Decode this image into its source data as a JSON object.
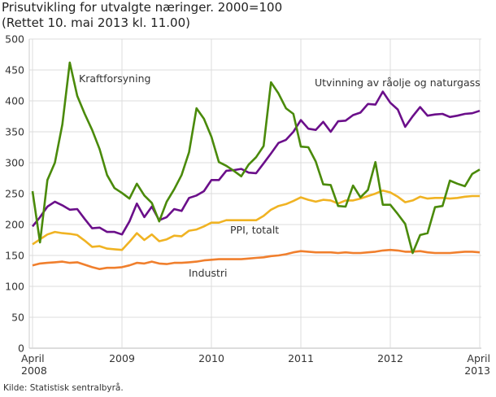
{
  "chart_data": {
    "type": "line",
    "title": "Prisutvikling for utvalgte næringer. 2000=100",
    "subtitle": "(Rettet 10. mai 2013 kl. 11.00)",
    "source": "Kilde: Statistisk sentralbyrå.",
    "xlabel": "",
    "ylabel": "",
    "ylim": [
      0,
      500
    ],
    "yticks": [
      0,
      50,
      100,
      150,
      200,
      250,
      300,
      350,
      400,
      450,
      500
    ],
    "grid": true,
    "legend": "inline labels",
    "xtick_labels": [
      {
        "month": "2008-04",
        "lines": [
          "April",
          "2008"
        ]
      },
      {
        "month": "2009-04",
        "lines": [
          "2009"
        ]
      },
      {
        "month": "2010-04",
        "lines": [
          "2010"
        ]
      },
      {
        "month": "2011-04",
        "lines": [
          "2011"
        ]
      },
      {
        "month": "2012-04",
        "lines": [
          "2012"
        ]
      },
      {
        "month": "2013-04",
        "lines": [
          "April",
          "2013"
        ]
      }
    ],
    "x_start": "2008-04",
    "x_end": "2013-04",
    "x_frequency": "monthly",
    "series": [
      {
        "name": "Kraftforsyning",
        "color": "#4a8a0a",
        "values": [
          254,
          171,
          272,
          300,
          362,
          462,
          408,
          379,
          353,
          322,
          280,
          259,
          251,
          242,
          266,
          247,
          235,
          205,
          237,
          257,
          280,
          317,
          388,
          371,
          342,
          301,
          295,
          287,
          278,
          297,
          309,
          327,
          430,
          412,
          388,
          379,
          326,
          325,
          302,
          265,
          264,
          230,
          229,
          263,
          244,
          256,
          301,
          232,
          232,
          217,
          201,
          154,
          183,
          186,
          228,
          230,
          271,
          266,
          262,
          282,
          289
        ]
      },
      {
        "name": "Utvinning av råolje og naturgass",
        "color": "#6b0f8a",
        "values": [
          197,
          212,
          229,
          237,
          231,
          224,
          225,
          209,
          194,
          195,
          188,
          188,
          184,
          205,
          234,
          212,
          229,
          207,
          212,
          225,
          222,
          243,
          247,
          254,
          272,
          272,
          287,
          288,
          290,
          284,
          283,
          299,
          315,
          332,
          337,
          350,
          369,
          355,
          353,
          366,
          350,
          367,
          368,
          377,
          381,
          395,
          394,
          415,
          397,
          386,
          358,
          375,
          390,
          376,
          378,
          379,
          374,
          376,
          379,
          380,
          384
        ]
      },
      {
        "name": "PPI, totalt",
        "color": "#f0b323",
        "values": [
          168,
          176,
          184,
          188,
          186,
          185,
          183,
          174,
          164,
          165,
          161,
          160,
          159,
          172,
          186,
          175,
          184,
          173,
          176,
          182,
          181,
          190,
          192,
          197,
          203,
          203,
          207,
          207,
          207,
          207,
          207,
          214,
          224,
          230,
          233,
          238,
          244,
          240,
          237,
          240,
          239,
          234,
          239,
          239,
          242,
          246,
          250,
          255,
          252,
          245,
          236,
          239,
          245,
          242,
          243,
          243,
          242,
          243,
          245,
          246,
          246
        ]
      },
      {
        "name": "Industri",
        "color": "#f07f2d",
        "values": [
          134,
          137,
          138,
          139,
          140,
          138,
          139,
          135,
          131,
          128,
          130,
          130,
          131,
          134,
          138,
          137,
          140,
          137,
          136,
          138,
          138,
          139,
          140,
          142,
          143,
          144,
          144,
          144,
          144,
          145,
          146,
          147,
          149,
          150,
          152,
          155,
          157,
          156,
          155,
          155,
          155,
          154,
          155,
          154,
          154,
          155,
          156,
          158,
          159,
          158,
          156,
          156,
          157,
          155,
          154,
          154,
          154,
          155,
          156,
          156,
          155
        ]
      }
    ],
    "series_labels": [
      {
        "series": "Kraftforsyning",
        "text": "Kraftforsyning"
      },
      {
        "series": "Utvinning av råolje og naturgass",
        "text": "Utvinning av råolje og naturgass"
      },
      {
        "series": "PPI, totalt",
        "text": "PPI, totalt"
      },
      {
        "series": "Industri",
        "text": "Industri"
      }
    ]
  }
}
